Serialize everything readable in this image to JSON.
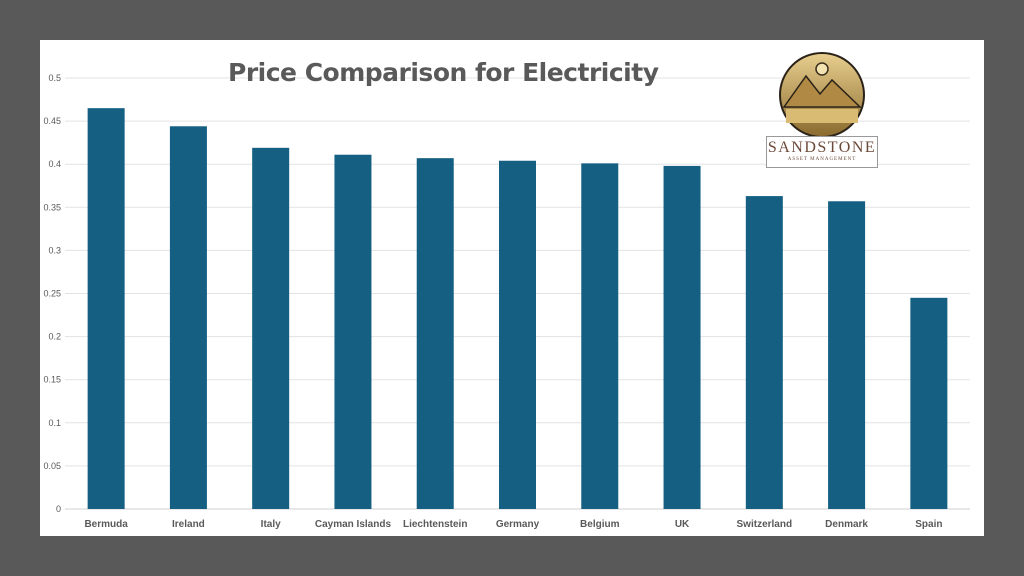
{
  "chart_data": {
    "type": "bar",
    "title": "Price Comparison for Electricity",
    "xlabel": "",
    "ylabel": "",
    "ylim": [
      0,
      0.5
    ],
    "yticks": [
      "0",
      "0.05",
      "0.1",
      "0.15",
      "0.2",
      "0.25",
      "0.3",
      "0.35",
      "0.4",
      "0.45",
      "0.5"
    ],
    "grid": true,
    "categories": [
      "Bermuda",
      "Ireland",
      "Italy",
      "Cayman Islands",
      "Liechtenstein",
      "Germany",
      "Belgium",
      "UK",
      "Switzerland",
      "Denmark",
      "Spain"
    ],
    "values": [
      0.465,
      0.444,
      0.419,
      0.411,
      0.407,
      0.404,
      0.401,
      0.398,
      0.363,
      0.357,
      0.245
    ],
    "bar_color": "#145f82"
  },
  "logo": {
    "name": "SANDSTONE",
    "subtitle": "ASSET MANAGEMENT"
  }
}
